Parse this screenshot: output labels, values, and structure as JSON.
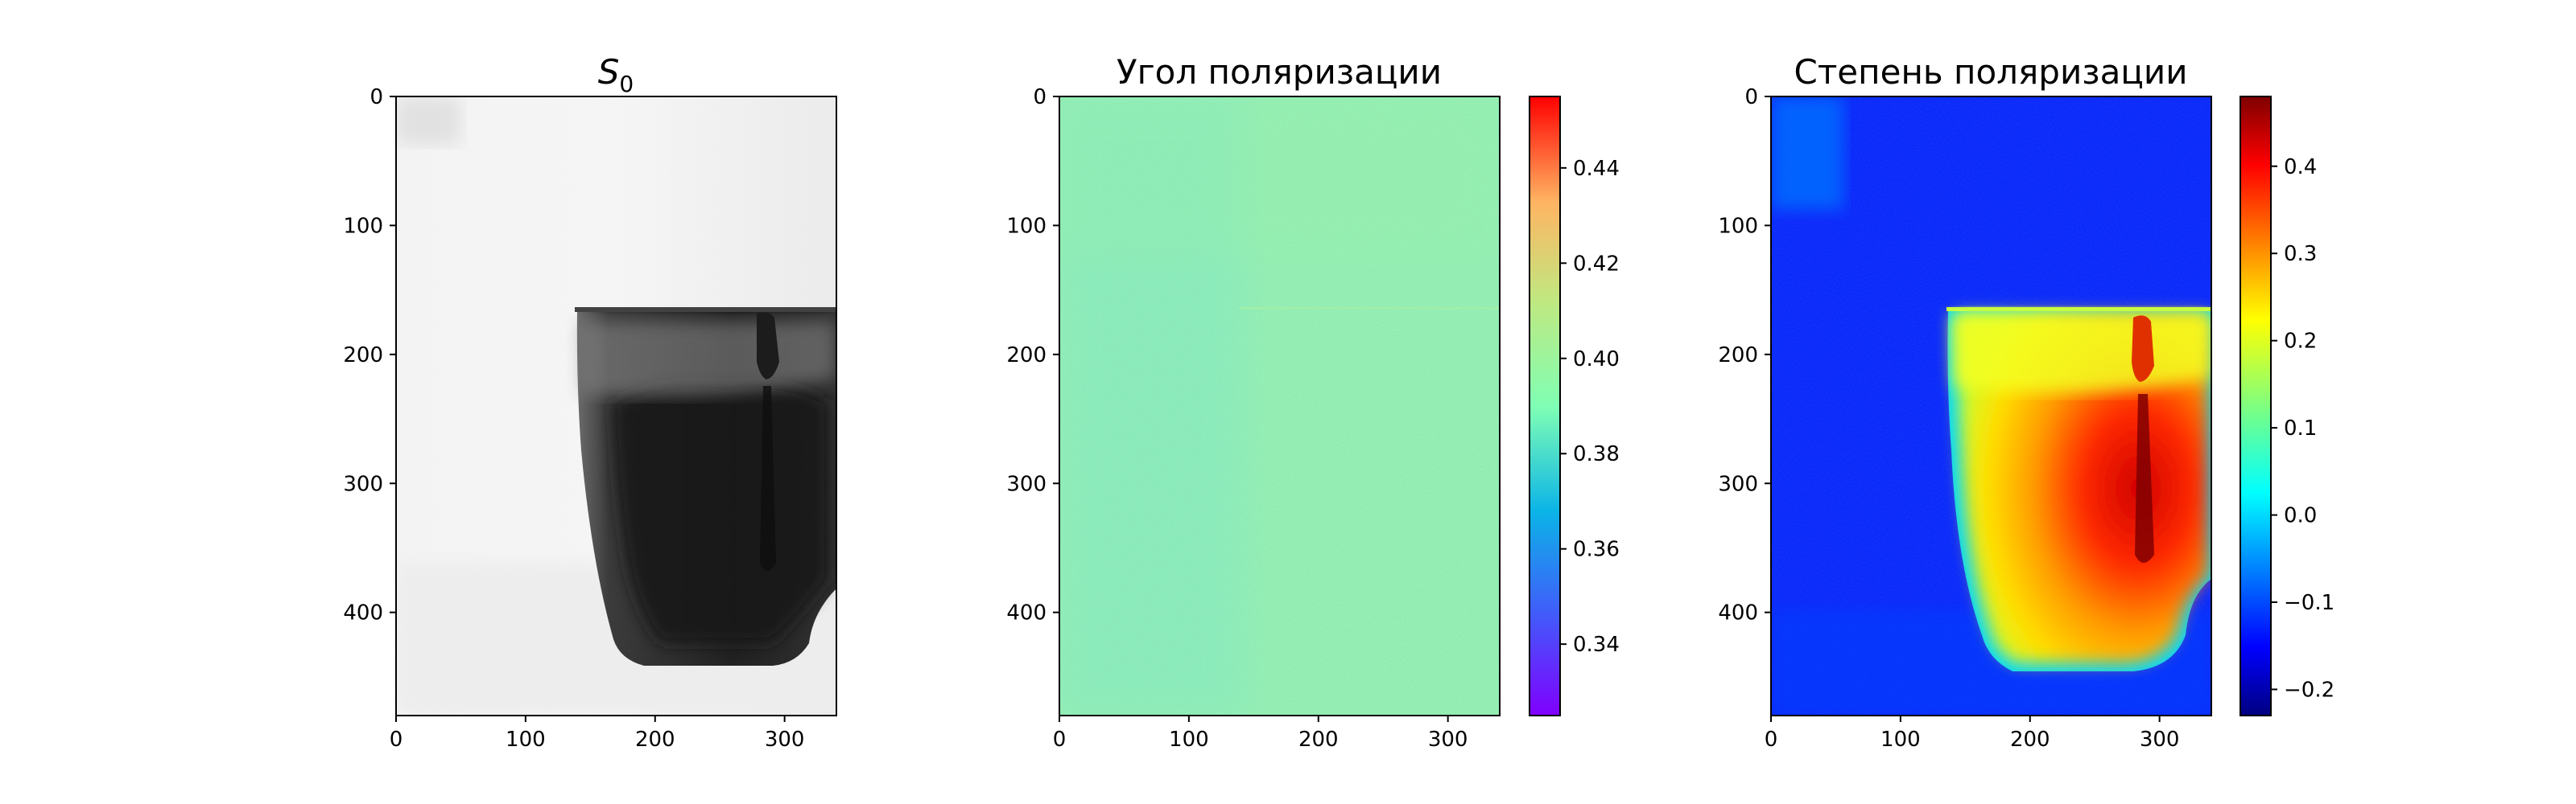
{
  "chart_data": [
    {
      "type": "heatmap",
      "title_base": "S",
      "title_sub": "0",
      "colormap": "gray",
      "x_range": [
        0,
        340
      ],
      "y_range": [
        0,
        480
      ],
      "xticks": [
        0,
        100,
        200,
        300
      ],
      "yticks": [
        0,
        100,
        200,
        300,
        400
      ],
      "colorbar": false
    },
    {
      "type": "heatmap",
      "title": "Угол поляризации",
      "colormap": "rainbow",
      "x_range": [
        0,
        340
      ],
      "y_range": [
        0,
        480
      ],
      "xticks": [
        0,
        100,
        200,
        300
      ],
      "yticks": [
        0,
        100,
        200,
        300,
        400
      ],
      "colorbar": true,
      "colorbar_range": [
        0.325,
        0.455
      ],
      "colorbar_ticks": [
        "0.34",
        "0.36",
        "0.38",
        "0.40",
        "0.42",
        "0.44"
      ]
    },
    {
      "type": "heatmap",
      "title": "Степень поляризации",
      "colormap": "jet",
      "x_range": [
        0,
        340
      ],
      "y_range": [
        0,
        480
      ],
      "xticks": [
        0,
        100,
        200,
        300
      ],
      "yticks": [
        0,
        100,
        200,
        300,
        400
      ],
      "colorbar": true,
      "colorbar_range": [
        -0.23,
        0.48
      ],
      "colorbar_ticks": [
        "−0.2",
        "−0.1",
        "0.0",
        "0.1",
        "0.2",
        "0.3",
        "0.4"
      ]
    }
  ]
}
